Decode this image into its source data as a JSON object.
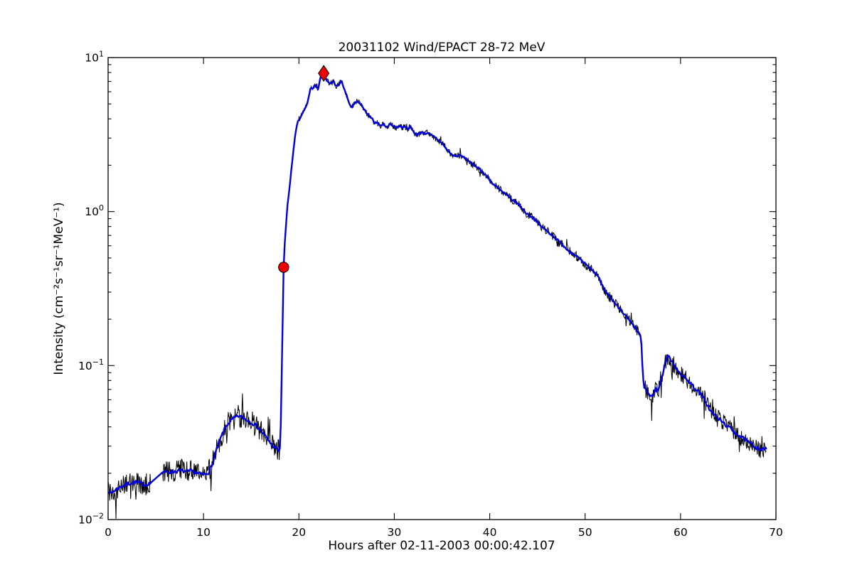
{
  "chart_data": {
    "type": "line",
    "title": "20031102 Wind/EPACT 28-72 MeV",
    "xlabel": "Hours after 02-11-2003 00:00:42.107",
    "ylabel": "Intensity (cm⁻²s⁻¹sr⁻¹MeV⁻¹)",
    "xlim": [
      0,
      70
    ],
    "ylog_exponent_range": [
      -2,
      1
    ],
    "grid": false,
    "legend": "none",
    "x_ticks": [
      0,
      10,
      20,
      30,
      40,
      50,
      60,
      70
    ],
    "x_tick_labels": [
      "0",
      "10",
      "20",
      "30",
      "40",
      "50",
      "60",
      "70"
    ],
    "y_ticks": [
      {
        "exponent": 1,
        "base": "10",
        "exp_label": "1"
      },
      {
        "exponent": 0,
        "base": "10",
        "exp_label": "0"
      },
      {
        "exponent": -1,
        "base": "10",
        "exp_label": "−1"
      },
      {
        "exponent": -2,
        "base": "10",
        "exp_label": "−2"
      }
    ],
    "y_minor_mantissas": [
      2,
      3,
      4,
      5,
      6,
      7,
      8,
      9
    ],
    "colors": {
      "raw_trace": "#000000",
      "smoothed_trace": "#0000dd",
      "marker_fill": "#ee0000",
      "marker_edge": "#000000",
      "frame": "#000000",
      "background": "#ffffff"
    },
    "series": [
      {
        "name": "smoothed-intensity",
        "color": "#0000dd",
        "points": [
          [
            0,
            0.0155
          ],
          [
            0.25,
            0.0147
          ],
          [
            0.5,
            0.0152
          ],
          [
            0.9,
            0.0158
          ],
          [
            1.3,
            0.0163
          ],
          [
            1.8,
            0.0168
          ],
          [
            2.3,
            0.0172
          ],
          [
            2.8,
            0.0175
          ],
          [
            3.3,
            0.0173
          ],
          [
            3.8,
            0.0168
          ],
          [
            4.4,
            0.0172
          ],
          [
            5.8,
            0.0205
          ],
          [
            6.2,
            0.0202
          ],
          [
            6.7,
            0.0205
          ],
          [
            7.2,
            0.0206
          ],
          [
            7.7,
            0.0208
          ],
          [
            8.2,
            0.0204
          ],
          [
            8.7,
            0.0207
          ],
          [
            9.2,
            0.0201
          ],
          [
            9.7,
            0.0197
          ],
          [
            10.1,
            0.0196
          ],
          [
            10.5,
            0.0202
          ],
          [
            10.9,
            0.0225
          ],
          [
            11.3,
            0.0275
          ],
          [
            11.7,
            0.0325
          ],
          [
            12.1,
            0.0375
          ],
          [
            12.5,
            0.0415
          ],
          [
            12.9,
            0.044
          ],
          [
            13.3,
            0.046
          ],
          [
            13.7,
            0.047
          ],
          [
            14.1,
            0.046
          ],
          [
            14.5,
            0.0445
          ],
          [
            14.9,
            0.0432
          ],
          [
            15.3,
            0.0417
          ],
          [
            15.7,
            0.0397
          ],
          [
            16.1,
            0.0372
          ],
          [
            16.5,
            0.0347
          ],
          [
            16.9,
            0.0322
          ],
          [
            17.3,
            0.03
          ],
          [
            17.7,
            0.0285
          ],
          [
            17.95,
            0.0278
          ],
          [
            18.05,
            0.03
          ],
          [
            18.1,
            0.042
          ],
          [
            18.2,
            0.09
          ],
          [
            18.3,
            0.2
          ],
          [
            18.4,
            0.435
          ],
          [
            18.5,
            0.6
          ],
          [
            18.65,
            0.82
          ],
          [
            18.8,
            1.1
          ],
          [
            19.0,
            1.4
          ],
          [
            19.2,
            1.85
          ],
          [
            19.4,
            2.4
          ],
          [
            19.6,
            3.1
          ],
          [
            19.75,
            3.55
          ],
          [
            19.9,
            3.85
          ],
          [
            20.1,
            4.0
          ],
          [
            20.35,
            4.35
          ],
          [
            20.6,
            4.6
          ],
          [
            20.85,
            5.0
          ],
          [
            21.05,
            5.6
          ],
          [
            21.25,
            6.45
          ],
          [
            21.45,
            6.25
          ],
          [
            21.6,
            6.55
          ],
          [
            21.8,
            6.6
          ],
          [
            22.0,
            6.15
          ],
          [
            22.15,
            6.9
          ],
          [
            22.3,
            7.55
          ],
          [
            22.45,
            7.6
          ],
          [
            22.6,
            7.85
          ],
          [
            22.9,
            7.1
          ],
          [
            23.1,
            6.9
          ],
          [
            23.35,
            6.75
          ],
          [
            23.6,
            7.1
          ],
          [
            23.8,
            6.6
          ],
          [
            24.1,
            6.5
          ],
          [
            24.45,
            7.2
          ],
          [
            24.7,
            6.3
          ],
          [
            24.9,
            5.9
          ],
          [
            25.1,
            5.45
          ],
          [
            25.3,
            4.95
          ],
          [
            25.55,
            4.7
          ],
          [
            25.8,
            5.0
          ],
          [
            26.0,
            5.2
          ],
          [
            26.35,
            5.1
          ],
          [
            26.65,
            4.8
          ],
          [
            27.0,
            4.45
          ],
          [
            27.35,
            4.2
          ],
          [
            27.7,
            4.0
          ],
          [
            27.9,
            3.75
          ],
          [
            28.2,
            3.8
          ],
          [
            28.55,
            3.6
          ],
          [
            28.9,
            3.7
          ],
          [
            29.25,
            3.5
          ],
          [
            29.5,
            3.7
          ],
          [
            29.9,
            3.6
          ],
          [
            30.2,
            3.5
          ],
          [
            30.5,
            3.62
          ],
          [
            30.8,
            3.5
          ],
          [
            31.1,
            3.6
          ],
          [
            31.4,
            3.45
          ],
          [
            31.7,
            3.55
          ],
          [
            32.0,
            3.3
          ],
          [
            32.3,
            3.15
          ],
          [
            32.6,
            3.2
          ],
          [
            32.9,
            3.3
          ],
          [
            33.2,
            3.2
          ],
          [
            33.5,
            3.25
          ],
          [
            33.8,
            3.15
          ],
          [
            34.15,
            3.06
          ],
          [
            34.9,
            2.82
          ],
          [
            35.6,
            2.49
          ],
          [
            36.0,
            2.35
          ],
          [
            36.4,
            2.28
          ],
          [
            36.9,
            2.32
          ],
          [
            37.5,
            2.21
          ],
          [
            38.2,
            2.02
          ],
          [
            38.7,
            1.95
          ],
          [
            39.0,
            1.88
          ],
          [
            39.6,
            1.71
          ],
          [
            40.3,
            1.52
          ],
          [
            40.9,
            1.41
          ],
          [
            41.6,
            1.3
          ],
          [
            42.3,
            1.2
          ],
          [
            43.1,
            1.1
          ],
          [
            43.8,
            0.98
          ],
          [
            44.6,
            0.9
          ],
          [
            45.3,
            0.81
          ],
          [
            46.1,
            0.74
          ],
          [
            46.8,
            0.68
          ],
          [
            47.6,
            0.61
          ],
          [
            48.3,
            0.555
          ],
          [
            49.0,
            0.52
          ],
          [
            49.8,
            0.465
          ],
          [
            50.5,
            0.43
          ],
          [
            51.3,
            0.385
          ],
          [
            52.0,
            0.315
          ],
          [
            52.7,
            0.27
          ],
          [
            53.4,
            0.24
          ],
          [
            54.1,
            0.215
          ],
          [
            54.8,
            0.19
          ],
          [
            55.4,
            0.17
          ],
          [
            55.8,
            0.156
          ],
          [
            55.92,
            0.135
          ],
          [
            56.05,
            0.082
          ],
          [
            56.2,
            0.073
          ],
          [
            56.5,
            0.068
          ],
          [
            56.8,
            0.0635
          ],
          [
            57.1,
            0.063
          ],
          [
            57.35,
            0.071
          ],
          [
            57.6,
            0.068
          ],
          [
            57.9,
            0.077
          ],
          [
            58.15,
            0.09
          ],
          [
            58.45,
            0.108
          ],
          [
            58.7,
            0.118
          ],
          [
            58.95,
            0.11
          ],
          [
            59.2,
            0.102
          ],
          [
            59.6,
            0.096
          ],
          [
            60.0,
            0.089
          ],
          [
            60.5,
            0.082
          ],
          [
            61.0,
            0.078
          ],
          [
            61.5,
            0.071
          ],
          [
            62.1,
            0.0655
          ],
          [
            62.7,
            0.057
          ],
          [
            63.2,
            0.05
          ],
          [
            63.8,
            0.046
          ],
          [
            64.5,
            0.0425
          ],
          [
            65.2,
            0.039
          ],
          [
            65.9,
            0.036
          ],
          [
            66.6,
            0.0335
          ],
          [
            67.2,
            0.0315
          ],
          [
            67.9,
            0.0295
          ],
          [
            68.5,
            0.0285
          ],
          [
            69.0,
            0.0287
          ]
        ]
      },
      {
        "name": "raw-intensity",
        "color": "#000000",
        "derived_from": "smoothed-intensity",
        "noise_segments_log10": [
          {
            "from": 0,
            "to": 4.45,
            "amp": 0.075
          },
          {
            "from": 4.45,
            "to": 5.75,
            "amp": 0
          },
          {
            "from": 5.75,
            "to": 17.95,
            "amp": 0.075
          },
          {
            "from": 17.95,
            "to": 18.6,
            "amp": 0.008
          },
          {
            "from": 18.6,
            "to": 23,
            "amp": 0.014
          },
          {
            "from": 23,
            "to": 30,
            "amp": 0.018
          },
          {
            "from": 30,
            "to": 38,
            "amp": 0.022
          },
          {
            "from": 38,
            "to": 46,
            "amp": 0.026
          },
          {
            "from": 46,
            "to": 52,
            "amp": 0.03
          },
          {
            "from": 52,
            "to": 55.85,
            "amp": 0.034
          },
          {
            "from": 55.85,
            "to": 56.1,
            "amp": 0.02
          },
          {
            "from": 56.1,
            "to": 69,
            "amp": 0.058
          }
        ],
        "spikes_log10": [
          {
            "x": 57.0,
            "dlog": -0.17
          },
          {
            "x": 0.8,
            "dlog": -0.12
          },
          {
            "x": 16.6,
            "dlog": -0.1
          }
        ]
      }
    ],
    "data_gap_hours": {
      "from": 4.45,
      "to": 5.75
    },
    "markers": [
      {
        "name": "onset",
        "shape": "circle",
        "x": 18.4,
        "y": 0.435
      },
      {
        "name": "peak",
        "shape": "diamond",
        "x": 22.6,
        "y": 7.9
      }
    ]
  }
}
